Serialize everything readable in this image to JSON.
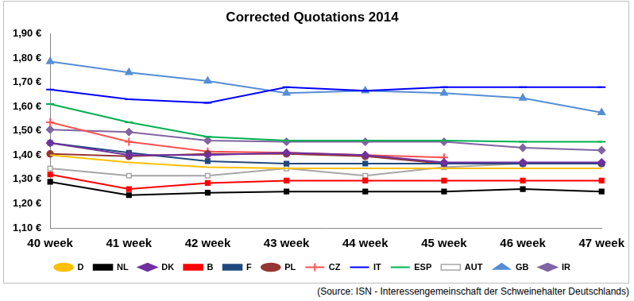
{
  "chart_data": {
    "type": "line",
    "title": "Corrected Quotations 2014",
    "categories": [
      "40 week",
      "41 week",
      "42 week",
      "43 week",
      "44 week",
      "45 week",
      "46 week",
      "47 week"
    ],
    "series": [
      {
        "name": "D",
        "color": "#FFC000",
        "marker": "none",
        "values": [
          1.4,
          1.37,
          1.35,
          1.345,
          1.345,
          1.345,
          1.345,
          1.345
        ]
      },
      {
        "name": "NL",
        "color": "#000000",
        "marker": "square",
        "values": [
          1.29,
          1.235,
          1.245,
          1.25,
          1.25,
          1.25,
          1.26,
          1.25
        ]
      },
      {
        "name": "DK",
        "color": "#7030A0",
        "marker": "diamond",
        "values": [
          1.45,
          1.4,
          1.4,
          1.41,
          1.4,
          1.37,
          1.37,
          1.37
        ]
      },
      {
        "name": "B",
        "color": "#FF0000",
        "marker": "square",
        "values": [
          1.32,
          1.26,
          1.285,
          1.295,
          1.295,
          1.295,
          1.295,
          1.295
        ]
      },
      {
        "name": "F",
        "color": "#1F497D",
        "marker": "square",
        "values": [
          1.45,
          1.41,
          1.375,
          1.365,
          1.365,
          1.365,
          1.365,
          1.365
        ]
      },
      {
        "name": "PL",
        "color": "#953735",
        "marker": "circle",
        "values": [
          1.405,
          1.395,
          1.405,
          1.405,
          1.395,
          1.365,
          1.365,
          1.365
        ]
      },
      {
        "name": "CZ",
        "color": "#FF5050",
        "marker": "plus",
        "values": [
          1.535,
          1.455,
          1.415,
          1.41,
          1.4,
          1.39,
          null,
          null
        ]
      },
      {
        "name": "IT",
        "color": "#0000FF",
        "marker": "dash",
        "values": [
          1.67,
          1.63,
          1.615,
          1.68,
          1.665,
          1.68,
          1.68,
          1.68
        ]
      },
      {
        "name": "ESP",
        "color": "#00B050",
        "marker": "dash",
        "values": [
          1.61,
          1.535,
          1.475,
          1.46,
          1.46,
          1.46,
          1.455,
          1.455
        ]
      },
      {
        "name": "AUT",
        "color": "#A6A6A6",
        "marker": "square-open",
        "values": [
          1.345,
          1.315,
          1.315,
          1.345,
          1.315,
          1.35,
          1.365,
          1.365
        ]
      },
      {
        "name": "GB",
        "color": "#558ED5",
        "marker": "triangle",
        "values": [
          1.785,
          1.74,
          1.705,
          1.655,
          1.665,
          1.655,
          1.635,
          1.575
        ]
      },
      {
        "name": "IR",
        "color": "#8064A2",
        "marker": "diamond",
        "values": [
          1.505,
          1.495,
          1.46,
          1.455,
          1.455,
          1.455,
          1.43,
          1.42
        ]
      }
    ],
    "ylim": [
      1.1,
      1.9
    ],
    "yticks": [
      {
        "value": 1.1,
        "label": "1,10 €"
      },
      {
        "value": 1.2,
        "label": "1,20 €"
      },
      {
        "value": 1.3,
        "label": "1,30 €"
      },
      {
        "value": 1.4,
        "label": "1,40 €"
      },
      {
        "value": 1.5,
        "label": "1,50 €"
      },
      {
        "value": 1.6,
        "label": "1,60 €"
      },
      {
        "value": 1.7,
        "label": "1,70 €"
      },
      {
        "value": 1.8,
        "label": "1,80 €"
      },
      {
        "value": 1.9,
        "label": "1,90 €"
      }
    ],
    "grid": false,
    "legend": "bottom",
    "annotations": [
      "(Source: ISN - Interessengemeinschaft der Schweinehalter Deutschlands)"
    ]
  }
}
